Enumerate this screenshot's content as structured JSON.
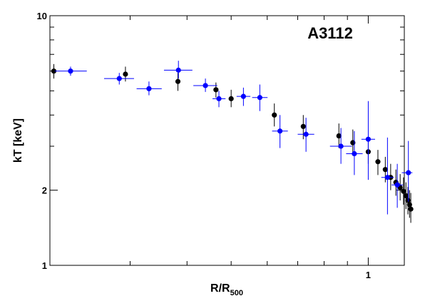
{
  "chart_data": {
    "type": "scatter",
    "title": "",
    "annotation": "A3112",
    "xlabel": {
      "main": "R/R",
      "sub": "500"
    },
    "ylabel": "kT [keV]",
    "xscale": "log",
    "yscale": "log",
    "xlim": [
      0.2,
      1.2
    ],
    "ylim": [
      1,
      10
    ],
    "xtick_labels": [
      {
        "value": 1,
        "label": "1"
      }
    ],
    "ytick_labels": [
      {
        "value": 1,
        "label": "1"
      },
      {
        "value": 2,
        "label": "2"
      },
      {
        "value": 10,
        "label": "10"
      }
    ],
    "grid": false,
    "legend": "none",
    "series": [
      {
        "color": "#000000",
        "points": [
          {
            "x": 0.204,
            "y": 6.0,
            "ylo": 5.6,
            "yhi": 6.4
          },
          {
            "x": 0.293,
            "y": 5.83,
            "ylo": 5.45,
            "yhi": 6.25
          },
          {
            "x": 0.382,
            "y": 5.45,
            "ylo": 5.0,
            "yhi": 5.9
          },
          {
            "x": 0.463,
            "y": 5.05,
            "ylo": 4.7,
            "yhi": 5.4
          },
          {
            "x": 0.5,
            "y": 4.65,
            "ylo": 4.3,
            "yhi": 5.05
          },
          {
            "x": 0.622,
            "y": 4.0,
            "ylo": 3.6,
            "yhi": 4.45
          },
          {
            "x": 0.72,
            "y": 3.6,
            "ylo": 3.2,
            "yhi": 4.0
          },
          {
            "x": 0.862,
            "y": 3.3,
            "ylo": 2.95,
            "yhi": 3.7
          },
          {
            "x": 0.925,
            "y": 3.1,
            "ylo": 2.75,
            "yhi": 3.5
          },
          {
            "x": 1.0,
            "y": 2.85,
            "ylo": 2.55,
            "yhi": 3.2
          },
          {
            "x": 1.05,
            "y": 2.6,
            "ylo": 2.3,
            "yhi": 2.9
          },
          {
            "x": 1.09,
            "y": 2.42,
            "ylo": 2.15,
            "yhi": 2.72
          },
          {
            "x": 1.12,
            "y": 2.25,
            "ylo": 2.0,
            "yhi": 2.55
          },
          {
            "x": 1.15,
            "y": 2.15,
            "ylo": 1.9,
            "yhi": 2.42
          },
          {
            "x": 1.175,
            "y": 2.05,
            "ylo": 1.82,
            "yhi": 2.32
          },
          {
            "x": 1.195,
            "y": 1.98,
            "ylo": 1.75,
            "yhi": 2.25
          },
          {
            "x": 1.21,
            "y": 1.9,
            "ylo": 1.68,
            "yhi": 2.15
          },
          {
            "x": 1.222,
            "y": 1.82,
            "ylo": 1.6,
            "yhi": 2.06
          },
          {
            "x": 1.232,
            "y": 1.75,
            "ylo": 1.55,
            "yhi": 2.0
          },
          {
            "x": 1.24,
            "y": 1.68,
            "ylo": 1.48,
            "yhi": 1.95
          }
        ]
      },
      {
        "color": "#0000ff",
        "points": [
          {
            "x": 0.222,
            "y": 6.0,
            "ylo": 5.75,
            "yhi": 6.25,
            "xlo": 0.205,
            "xhi": 0.241
          },
          {
            "x": 0.284,
            "y": 5.6,
            "ylo": 5.3,
            "yhi": 5.9,
            "xlo": 0.263,
            "xhi": 0.306
          },
          {
            "x": 0.33,
            "y": 5.1,
            "ylo": 4.8,
            "yhi": 5.45,
            "xlo": 0.31,
            "xhi": 0.352
          },
          {
            "x": 0.383,
            "y": 6.05,
            "ylo": 5.6,
            "yhi": 6.6,
            "xlo": 0.356,
            "xhi": 0.411
          },
          {
            "x": 0.439,
            "y": 5.25,
            "ylo": 4.95,
            "yhi": 5.6,
            "xlo": 0.413,
            "xhi": 0.466
          },
          {
            "x": 0.47,
            "y": 4.65,
            "ylo": 4.3,
            "yhi": 5.0,
            "xlo": 0.455,
            "xhi": 0.486
          },
          {
            "x": 0.532,
            "y": 4.75,
            "ylo": 4.35,
            "yhi": 5.15,
            "xlo": 0.514,
            "xhi": 0.551
          },
          {
            "x": 0.578,
            "y": 4.7,
            "ylo": 4.15,
            "yhi": 5.3,
            "xlo": 0.556,
            "xhi": 0.601
          },
          {
            "x": 0.64,
            "y": 3.45,
            "ylo": 2.95,
            "yhi": 4.0,
            "xlo": 0.615,
            "xhi": 0.666
          },
          {
            "x": 0.73,
            "y": 3.35,
            "ylo": 2.85,
            "yhi": 3.9,
            "xlo": 0.7,
            "xhi": 0.761
          },
          {
            "x": 0.871,
            "y": 3.0,
            "ylo": 2.55,
            "yhi": 3.55,
            "xlo": 0.824,
            "xhi": 0.921
          },
          {
            "x": 0.932,
            "y": 2.8,
            "ylo": 2.3,
            "yhi": 3.45,
            "xlo": 0.894,
            "xhi": 0.972
          },
          {
            "x": 1.0,
            "y": 3.2,
            "ylo": 2.2,
            "yhi": 4.55,
            "xlo": 0.966,
            "xhi": 1.035
          },
          {
            "x": 1.102,
            "y": 2.25,
            "ylo": 1.6,
            "yhi": 3.25,
            "xlo": 1.068,
            "xhi": 1.137
          },
          {
            "x": 1.158,
            "y": 2.1,
            "ylo": 1.7,
            "yhi": 2.55,
            "xlo": 1.125,
            "xhi": 1.192
          },
          {
            "x": 1.225,
            "y": 2.35,
            "ylo": 1.8,
            "yhi": 3.15,
            "xlo": 1.185,
            "xhi": 1.25
          }
        ]
      }
    ]
  }
}
